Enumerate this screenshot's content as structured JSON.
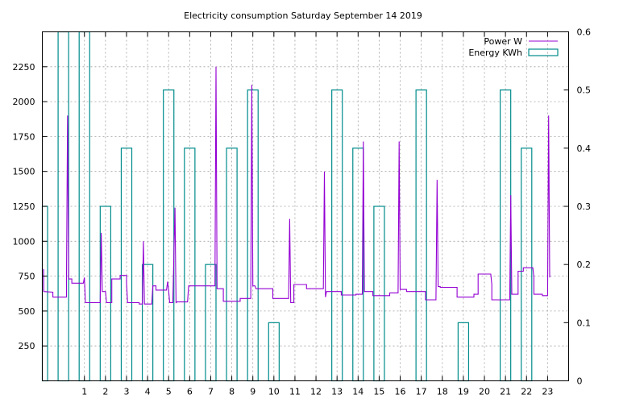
{
  "chart_data": {
    "type": "line",
    "title": "Electricity consumption Saturday September 14 2019",
    "xlabel": "",
    "ylabel": "",
    "y2label": "",
    "xlim": [
      -1,
      24
    ],
    "ylim": [
      0,
      2500
    ],
    "y2lim": [
      0,
      0.6
    ],
    "x_ticks": [
      1,
      2,
      3,
      4,
      5,
      6,
      7,
      8,
      9,
      10,
      11,
      12,
      13,
      14,
      15,
      16,
      17,
      18,
      19,
      20,
      21,
      22,
      23
    ],
    "y_ticks": [
      250,
      500,
      750,
      1000,
      1250,
      1500,
      1750,
      2000,
      2250
    ],
    "y2_ticks": [
      0,
      0.1,
      0.2,
      0.3,
      0.4,
      0.5,
      0.6
    ],
    "grid": true,
    "legend_position": "top-right",
    "series": [
      {
        "name": "Power W",
        "color": "#9400d3",
        "style": "line",
        "axis": "y",
        "points": [
          [
            -0.94,
            800
          ],
          [
            -0.93,
            640
          ],
          [
            -0.5,
            635
          ],
          [
            -0.5,
            600
          ],
          [
            0.15,
            600
          ],
          [
            0.15,
            730
          ],
          [
            0.2,
            1900
          ],
          [
            0.25,
            730
          ],
          [
            0.4,
            730
          ],
          [
            0.4,
            700
          ],
          [
            0.95,
            700
          ],
          [
            1.0,
            740
          ],
          [
            1.05,
            560
          ],
          [
            1.1,
            560
          ],
          [
            1.75,
            560
          ],
          [
            1.8,
            1060
          ],
          [
            1.85,
            640
          ],
          [
            2.0,
            640
          ],
          [
            2.05,
            560
          ],
          [
            2.3,
            560
          ],
          [
            2.3,
            730
          ],
          [
            2.7,
            730
          ],
          [
            2.7,
            755
          ],
          [
            3.0,
            755
          ],
          [
            3.0,
            700
          ],
          [
            3.05,
            560
          ],
          [
            3.6,
            560
          ],
          [
            3.6,
            550
          ],
          [
            3.75,
            550
          ],
          [
            3.8,
            1000
          ],
          [
            3.85,
            550
          ],
          [
            4.2,
            550
          ],
          [
            4.25,
            680
          ],
          [
            4.4,
            680
          ],
          [
            4.4,
            650
          ],
          [
            4.9,
            650
          ],
          [
            4.95,
            710
          ],
          [
            5.0,
            650
          ],
          [
            5.05,
            560
          ],
          [
            5.2,
            560
          ],
          [
            5.3,
            1240
          ],
          [
            5.35,
            560
          ],
          [
            5.4,
            565
          ],
          [
            5.9,
            565
          ],
          [
            5.95,
            680
          ],
          [
            7.2,
            680
          ],
          [
            7.25,
            2250
          ],
          [
            7.3,
            660
          ],
          [
            7.6,
            660
          ],
          [
            7.6,
            570
          ],
          [
            8.4,
            570
          ],
          [
            8.4,
            590
          ],
          [
            8.9,
            590
          ],
          [
            8.95,
            2120
          ],
          [
            9.0,
            680
          ],
          [
            9.1,
            680
          ],
          [
            9.15,
            660
          ],
          [
            9.95,
            660
          ],
          [
            9.95,
            590
          ],
          [
            10.7,
            590
          ],
          [
            10.75,
            1160
          ],
          [
            10.8,
            560
          ],
          [
            10.95,
            560
          ],
          [
            10.95,
            690
          ],
          [
            11.55,
            690
          ],
          [
            11.55,
            660
          ],
          [
            12.35,
            660
          ],
          [
            12.4,
            1500
          ],
          [
            12.45,
            600
          ],
          [
            12.5,
            640
          ],
          [
            13.2,
            640
          ],
          [
            13.2,
            615
          ],
          [
            13.9,
            615
          ],
          [
            13.9,
            620
          ],
          [
            14.2,
            620
          ],
          [
            14.25,
            1715
          ],
          [
            14.3,
            640
          ],
          [
            14.7,
            640
          ],
          [
            14.7,
            610
          ],
          [
            15.5,
            610
          ],
          [
            15.5,
            630
          ],
          [
            15.9,
            630
          ],
          [
            15.95,
            1715
          ],
          [
            16.0,
            655
          ],
          [
            16.3,
            655
          ],
          [
            16.3,
            640
          ],
          [
            17.2,
            640
          ],
          [
            17.2,
            580
          ],
          [
            17.7,
            580
          ],
          [
            17.75,
            1440
          ],
          [
            17.8,
            675
          ],
          [
            17.9,
            675
          ],
          [
            17.9,
            670
          ],
          [
            18.7,
            670
          ],
          [
            18.7,
            600
          ],
          [
            19.5,
            600
          ],
          [
            19.5,
            620
          ],
          [
            19.7,
            620
          ],
          [
            19.7,
            765
          ],
          [
            20.3,
            765
          ],
          [
            20.35,
            690
          ],
          [
            20.35,
            580
          ],
          [
            21.2,
            580
          ],
          [
            21.25,
            1330
          ],
          [
            21.3,
            620
          ],
          [
            21.6,
            620
          ],
          [
            21.6,
            785
          ],
          [
            21.85,
            785
          ],
          [
            21.85,
            810
          ],
          [
            22.3,
            810
          ],
          [
            22.35,
            740
          ],
          [
            22.35,
            620
          ],
          [
            22.75,
            620
          ],
          [
            22.75,
            610
          ],
          [
            23.0,
            610
          ],
          [
            23.05,
            1900
          ],
          [
            23.1,
            740
          ],
          [
            23.1,
            760
          ]
        ]
      },
      {
        "name": "Energy KWh",
        "color": "#008b8b",
        "style": "boxes",
        "axis": "y2",
        "boxes": [
          [
            -1,
            0.3
          ],
          [
            0,
            0.6
          ],
          [
            1,
            0.6
          ],
          [
            2,
            0.3
          ],
          [
            3,
            0.4
          ],
          [
            4,
            0.2
          ],
          [
            5,
            0.5
          ],
          [
            6,
            0.4
          ],
          [
            7,
            0.2
          ],
          [
            8,
            0.4
          ],
          [
            9,
            0.5
          ],
          [
            10,
            0.1
          ],
          [
            11,
            0
          ],
          [
            12,
            0
          ],
          [
            13,
            0.5
          ],
          [
            14,
            0.4
          ],
          [
            15,
            0.3
          ],
          [
            16,
            0
          ],
          [
            17,
            0.5
          ],
          [
            18,
            0
          ],
          [
            19,
            0.1
          ],
          [
            20,
            0
          ],
          [
            21,
            0.5
          ],
          [
            22,
            0.4
          ],
          [
            23,
            0
          ]
        ]
      }
    ]
  }
}
